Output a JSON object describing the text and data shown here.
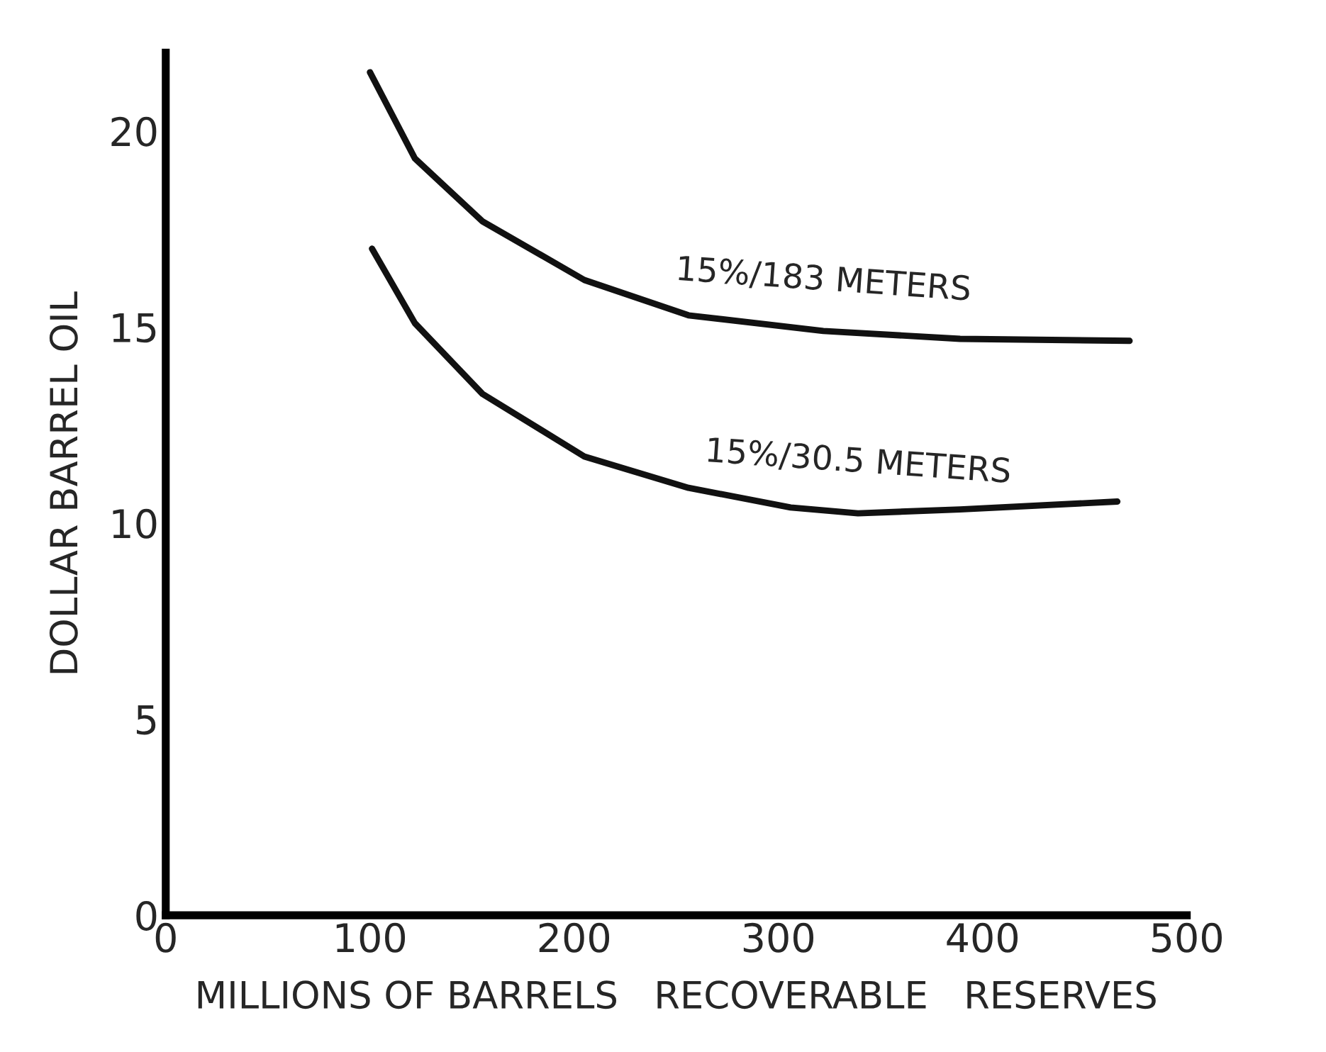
{
  "chart_data": {
    "type": "line",
    "xlabel": "MILLIONS OF BARRELS   RECOVERABLE   RESERVES",
    "ylabel": "DOLLAR BARREL OIL",
    "xlim": [
      0,
      500
    ],
    "xticks": [
      0,
      100,
      200,
      300,
      400,
      500
    ],
    "ylim": [
      0,
      22
    ],
    "yticks": [
      0,
      5,
      10,
      15,
      20
    ],
    "grid": false,
    "legend": false,
    "marker": "none",
    "line_style": "solid",
    "series": [
      {
        "color": "#111111",
        "x": [
          100,
          122,
          155,
          205,
          256,
          322,
          389,
          472
        ],
        "values": [
          21.5,
          19.3,
          17.7,
          16.2,
          15.3,
          14.9,
          14.7,
          14.65
        ]
      },
      {
        "color": "#111111",
        "x": [
          101,
          122,
          155,
          205,
          256,
          306,
          339,
          389,
          466
        ],
        "values": [
          17.0,
          15.1,
          13.3,
          11.7,
          10.9,
          10.4,
          10.25,
          10.35,
          10.55
        ]
      }
    ],
    "annotations": [
      "15%/183 METERS",
      "15%/30.5 METERS"
    ]
  }
}
